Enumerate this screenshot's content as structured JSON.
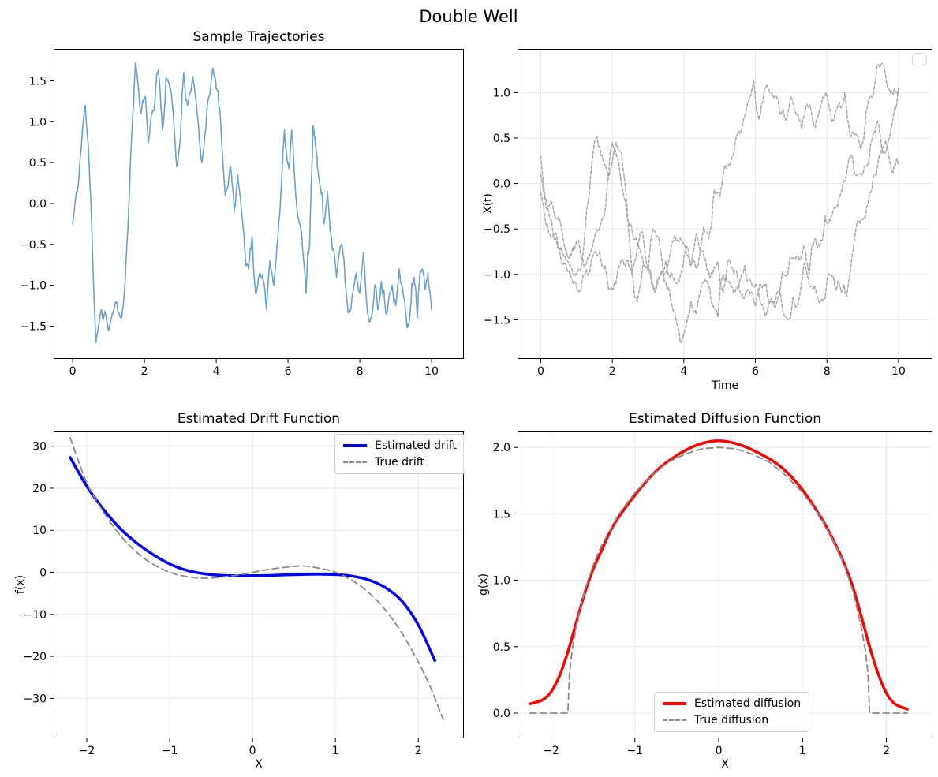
{
  "figure": {
    "suptitle": "Double Well",
    "background": "#ffffff"
  },
  "chart_data": [
    {
      "id": "sample-trajectories",
      "type": "line",
      "title": "Sample Trajectories",
      "xlabel": "",
      "ylabel": "",
      "xlim": [
        -0.53,
        10.9
      ],
      "ylim": [
        -1.9,
        1.89
      ],
      "xticks": {
        "values": [
          0,
          2,
          4,
          6,
          8,
          10
        ],
        "labels": [
          "0",
          "2",
          "4",
          "6",
          "8",
          "10"
        ]
      },
      "yticks": {
        "values": [
          -1.5,
          -1.0,
          -0.5,
          0.0,
          0.5,
          1.0,
          1.5
        ],
        "labels": [
          "−1.5",
          "−1.0",
          "−0.5",
          "0.0",
          "0.5",
          "1.0",
          "1.5"
        ]
      },
      "grid": false,
      "series": [
        {
          "name": "trajectory-blue",
          "color": "#6aa2cf",
          "style": "solid",
          "width": 1.6,
          "render": "noisy",
          "seed": 11,
          "roughness": 0.75,
          "x": [
            0,
            0.2,
            0.35,
            0.5,
            0.65,
            0.8,
            1.0,
            1.2,
            1.35,
            1.5,
            1.65,
            1.75,
            1.9,
            2.0,
            2.1,
            2.2,
            2.35,
            2.5,
            2.6,
            2.75,
            2.9,
            3.0,
            3.1,
            3.2,
            3.35,
            3.5,
            3.6,
            3.75,
            3.9,
            4.0,
            4.1,
            4.25,
            4.4,
            4.5,
            4.6,
            4.75,
            4.9,
            5.0,
            5.1,
            5.25,
            5.4,
            5.5,
            5.6,
            5.75,
            5.9,
            6.0,
            6.1,
            6.2,
            6.35,
            6.5,
            6.6,
            6.7,
            6.8,
            6.9,
            7.0,
            7.1,
            7.2,
            7.35,
            7.5,
            7.6,
            7.75,
            7.9,
            8.0,
            8.1,
            8.25,
            8.4,
            8.5,
            8.6,
            8.75,
            8.9,
            9.0,
            9.1,
            9.25,
            9.4,
            9.5,
            9.6,
            9.75,
            9.9,
            10.0
          ],
          "y": [
            -0.25,
            0.5,
            1.2,
            0.1,
            -1.7,
            -1.3,
            -1.55,
            -1.2,
            -1.4,
            -0.6,
            0.9,
            1.72,
            1.1,
            1.3,
            0.75,
            1.1,
            1.6,
            0.9,
            1.55,
            1.35,
            0.45,
            0.8,
            1.6,
            1.2,
            1.55,
            1.0,
            0.5,
            1.2,
            1.65,
            1.4,
            1.15,
            0.1,
            0.45,
            -0.1,
            0.35,
            -0.3,
            -0.8,
            -0.4,
            -1.1,
            -0.9,
            -1.3,
            -0.7,
            -1.0,
            -0.2,
            0.9,
            0.5,
            0.9,
            0.2,
            -0.3,
            -1.1,
            -0.5,
            0.95,
            0.6,
            0.2,
            -0.25,
            0.15,
            -0.4,
            -0.9,
            -0.5,
            -1.0,
            -1.3,
            -0.85,
            -1.1,
            -0.6,
            -1.45,
            -1.1,
            -1.3,
            -0.95,
            -1.35,
            -1.0,
            -1.25,
            -0.8,
            -1.2,
            -1.35,
            -0.9,
            -1.4,
            -0.8,
            -0.85,
            -1.3
          ]
        }
      ]
    },
    {
      "id": "trajectories-gray",
      "type": "line",
      "title": "",
      "xlabel": "Time",
      "ylabel": "X(t)",
      "xlim": [
        -0.65,
        10.95
      ],
      "ylim": [
        -1.93,
        1.48
      ],
      "xticks": {
        "values": [
          0,
          2,
          4,
          6,
          8,
          10
        ],
        "labels": [
          "0",
          "2",
          "4",
          "6",
          "8",
          "10"
        ]
      },
      "yticks": {
        "values": [
          -1.5,
          -1.0,
          -0.5,
          0.0,
          0.5,
          1.0
        ],
        "labels": [
          "−1.5",
          "−1.0",
          "−0.5",
          "0.0",
          "0.5",
          "1.0"
        ]
      },
      "grid": true,
      "legend": {
        "entries": []
      },
      "series": [
        {
          "name": "gray-trajectory-1",
          "color": "#a8a8a8",
          "style": "dashed",
          "width": 1.5,
          "render": "noisy",
          "seed": 23,
          "roughness": 0.7,
          "x": [
            0,
            0.3,
            0.6,
            0.9,
            1.2,
            1.5,
            1.8,
            2.0,
            2.3,
            2.6,
            2.9,
            3.2,
            3.5,
            3.8,
            4.1,
            4.4,
            4.7,
            5.0,
            5.3,
            5.5,
            5.8,
            6.1,
            6.4,
            6.7,
            7.0,
            7.3,
            7.6,
            7.9,
            8.2,
            8.5,
            8.8,
            9.1,
            9.4,
            9.7,
            10
          ],
          "y": [
            0.3,
            -0.2,
            -0.55,
            -0.7,
            -0.9,
            -0.6,
            -0.3,
            0.45,
            -0.1,
            -0.6,
            -0.9,
            -1.2,
            -0.85,
            -1.1,
            -0.7,
            -0.9,
            -0.6,
            -0.15,
            0.2,
            0.55,
            0.9,
            0.7,
            1.0,
            0.75,
            0.95,
            0.6,
            0.7,
            0.95,
            0.7,
            1.0,
            0.55,
            0.8,
            1.3,
            1.05,
            1.0
          ]
        },
        {
          "name": "gray-trajectory-2",
          "color": "#a8a8a8",
          "style": "dashed",
          "width": 1.5,
          "render": "noisy",
          "seed": 57,
          "roughness": 0.7,
          "x": [
            0,
            0.3,
            0.6,
            0.9,
            1.2,
            1.5,
            1.8,
            2.1,
            2.4,
            2.7,
            3.0,
            3.3,
            3.6,
            3.9,
            4.2,
            4.5,
            4.8,
            5.1,
            5.4,
            5.7,
            6.0,
            6.3,
            6.6,
            6.9,
            7.2,
            7.5,
            7.8,
            8.1,
            8.4,
            8.7,
            9.0,
            9.3,
            9.6,
            9.8,
            10
          ],
          "y": [
            0.1,
            -0.4,
            -0.75,
            -1.0,
            -0.7,
            0.45,
            0.2,
            0.45,
            -0.2,
            -1.3,
            -0.95,
            -0.6,
            -1.2,
            -1.75,
            -1.3,
            -1.1,
            -1.35,
            -1.0,
            -1.2,
            -0.9,
            -1.1,
            -1.45,
            -1.2,
            -1.5,
            -1.3,
            -1.1,
            -1.3,
            -1.0,
            -1.2,
            -0.8,
            -0.4,
            0.1,
            0.45,
            0.15,
            0.2
          ]
        },
        {
          "name": "gray-trajectory-3",
          "color": "#a8a8a8",
          "style": "dashed",
          "width": 1.5,
          "render": "noisy",
          "seed": 91,
          "roughness": 0.7,
          "x": [
            0,
            0.3,
            0.6,
            0.9,
            1.2,
            1.5,
            1.8,
            2.1,
            2.4,
            2.7,
            3.0,
            3.3,
            3.6,
            3.9,
            4.2,
            4.5,
            4.8,
            5.1,
            5.4,
            5.7,
            6.0,
            6.3,
            6.6,
            6.9,
            7.2,
            7.5,
            7.8,
            8.1,
            8.4,
            8.7,
            9.0,
            9.3,
            9.6,
            9.9,
            10
          ],
          "y": [
            -0.1,
            -0.6,
            -0.9,
            -1.1,
            -1.0,
            -0.75,
            -0.9,
            -1.1,
            -0.85,
            -0.7,
            -0.9,
            -1.05,
            -0.8,
            -0.6,
            -0.9,
            -0.75,
            -1.0,
            -1.2,
            -1.0,
            -1.25,
            -1.35,
            -1.1,
            -1.3,
            -1.0,
            -0.8,
            -1.0,
            -0.7,
            -0.4,
            -0.1,
            0.3,
            0.1,
            0.55,
            0.35,
            0.85,
            1.05
          ]
        }
      ]
    },
    {
      "id": "estimated-drift",
      "type": "line",
      "title": "Estimated Drift Function",
      "xlabel": "X",
      "ylabel": "f(x)",
      "xlim": [
        -2.4,
        2.55
      ],
      "ylim": [
        -39.5,
        33.5
      ],
      "xticks": {
        "values": [
          -2,
          -1,
          0,
          1,
          2
        ],
        "labels": [
          "−2",
          "−1",
          "0",
          "1",
          "2"
        ]
      },
      "yticks": {
        "values": [
          -30,
          -20,
          -10,
          0,
          10,
          20,
          30
        ],
        "labels": [
          "−30",
          "−20",
          "−10",
          "0",
          "10",
          "20",
          "30"
        ]
      },
      "grid": true,
      "legend": {
        "position": "upper right",
        "entries": [
          {
            "label": "Estimated drift"
          },
          {
            "label": "True drift"
          }
        ]
      },
      "series": [
        {
          "name": "estimated-drift-line",
          "color": "#0000ff",
          "style": "solid",
          "width": 3.5,
          "render": "smooth",
          "x": [
            -2.2,
            -2.0,
            -1.8,
            -1.6,
            -1.4,
            -1.2,
            -1.0,
            -0.8,
            -0.6,
            -0.4,
            -0.2,
            0,
            0.2,
            0.4,
            0.6,
            0.8,
            1.0,
            1.2,
            1.4,
            1.6,
            1.8,
            2.0,
            2.2
          ],
          "y": [
            27.3,
            20.5,
            15.0,
            10.5,
            7.0,
            4.2,
            2.0,
            0.5,
            -0.3,
            -0.7,
            -0.8,
            -0.8,
            -0.75,
            -0.6,
            -0.5,
            -0.45,
            -0.55,
            -0.9,
            -1.8,
            -3.6,
            -6.8,
            -12.5,
            -21.0
          ]
        },
        {
          "name": "true-drift-line",
          "color": "#8a8a8a",
          "style": "dashed",
          "width": 1.8,
          "render": "smooth",
          "x": [
            -2.2,
            -2.0,
            -1.8,
            -1.6,
            -1.4,
            -1.2,
            -1.0,
            -0.8,
            -0.6,
            -0.4,
            -0.2,
            0,
            0.2,
            0.4,
            0.6,
            0.8,
            1.0,
            1.2,
            1.4,
            1.6,
            1.8,
            2.0,
            2.15,
            2.3
          ],
          "y": [
            32.0,
            21.3,
            14.4,
            8.9,
            4.8,
            1.9,
            0.0,
            -1.0,
            -1.4,
            -1.2,
            -0.7,
            0.0,
            0.7,
            1.2,
            1.5,
            1.0,
            0.0,
            -1.9,
            -4.8,
            -8.9,
            -14.4,
            -21.3,
            -27.5,
            -35.0
          ]
        }
      ]
    },
    {
      "id": "estimated-diffusion",
      "type": "line",
      "title": "Estimated Diffusion Function",
      "xlabel": "X",
      "ylabel": "g(x)",
      "xlim": [
        -2.4,
        2.55
      ],
      "ylim": [
        -0.19,
        2.12
      ],
      "xticks": {
        "values": [
          -2,
          -1,
          0,
          1,
          2
        ],
        "labels": [
          "−2",
          "−1",
          "0",
          "1",
          "2"
        ]
      },
      "yticks": {
        "values": [
          0.0,
          0.5,
          1.0,
          1.5,
          2.0
        ],
        "labels": [
          "0.0",
          "0.5",
          "1.0",
          "1.5",
          "2.0"
        ]
      },
      "grid": true,
      "legend": {
        "position": "lower center",
        "entries": [
          {
            "label": "Estimated diffusion"
          },
          {
            "label": "True diffusion"
          }
        ]
      },
      "series": [
        {
          "name": "estimated-diffusion-line",
          "color": "#ff0000",
          "style": "solid",
          "width": 3.5,
          "render": "smooth",
          "x": [
            -2.25,
            -2.1,
            -2.0,
            -1.9,
            -1.8,
            -1.7,
            -1.6,
            -1.5,
            -1.4,
            -1.25,
            -1.0,
            -0.75,
            -0.5,
            -0.25,
            0,
            0.25,
            0.5,
            0.75,
            1.0,
            1.25,
            1.4,
            1.5,
            1.6,
            1.7,
            1.8,
            1.9,
            2.0,
            2.1,
            2.25
          ],
          "y": [
            0.07,
            0.1,
            0.16,
            0.28,
            0.46,
            0.68,
            0.9,
            1.08,
            1.22,
            1.42,
            1.64,
            1.82,
            1.94,
            2.02,
            2.05,
            2.02,
            1.95,
            1.85,
            1.68,
            1.44,
            1.26,
            1.12,
            0.95,
            0.73,
            0.5,
            0.3,
            0.15,
            0.07,
            0.03
          ]
        },
        {
          "name": "true-diffusion-line",
          "color": "#8a8a8a",
          "style": "dashed",
          "width": 1.8,
          "render": "linear",
          "x": [
            -2.25,
            -1.81,
            -1.8,
            -1.78,
            -1.75,
            -1.7,
            -1.6,
            -1.5,
            -1.4,
            -1.2,
            -1.0,
            -0.8,
            -0.6,
            -0.4,
            -0.2,
            0,
            0.2,
            0.4,
            0.6,
            0.8,
            1.0,
            1.2,
            1.4,
            1.5,
            1.6,
            1.7,
            1.75,
            1.78,
            1.8,
            1.81,
            2.25
          ],
          "y": [
            0,
            0,
            0,
            0.3,
            0.47,
            0.65,
            0.92,
            1.11,
            1.26,
            1.49,
            1.66,
            1.79,
            1.89,
            1.95,
            1.99,
            2.0,
            1.99,
            1.95,
            1.89,
            1.79,
            1.66,
            1.49,
            1.26,
            1.11,
            0.92,
            0.65,
            0.47,
            0.3,
            0,
            0,
            0
          ]
        }
      ]
    }
  ]
}
